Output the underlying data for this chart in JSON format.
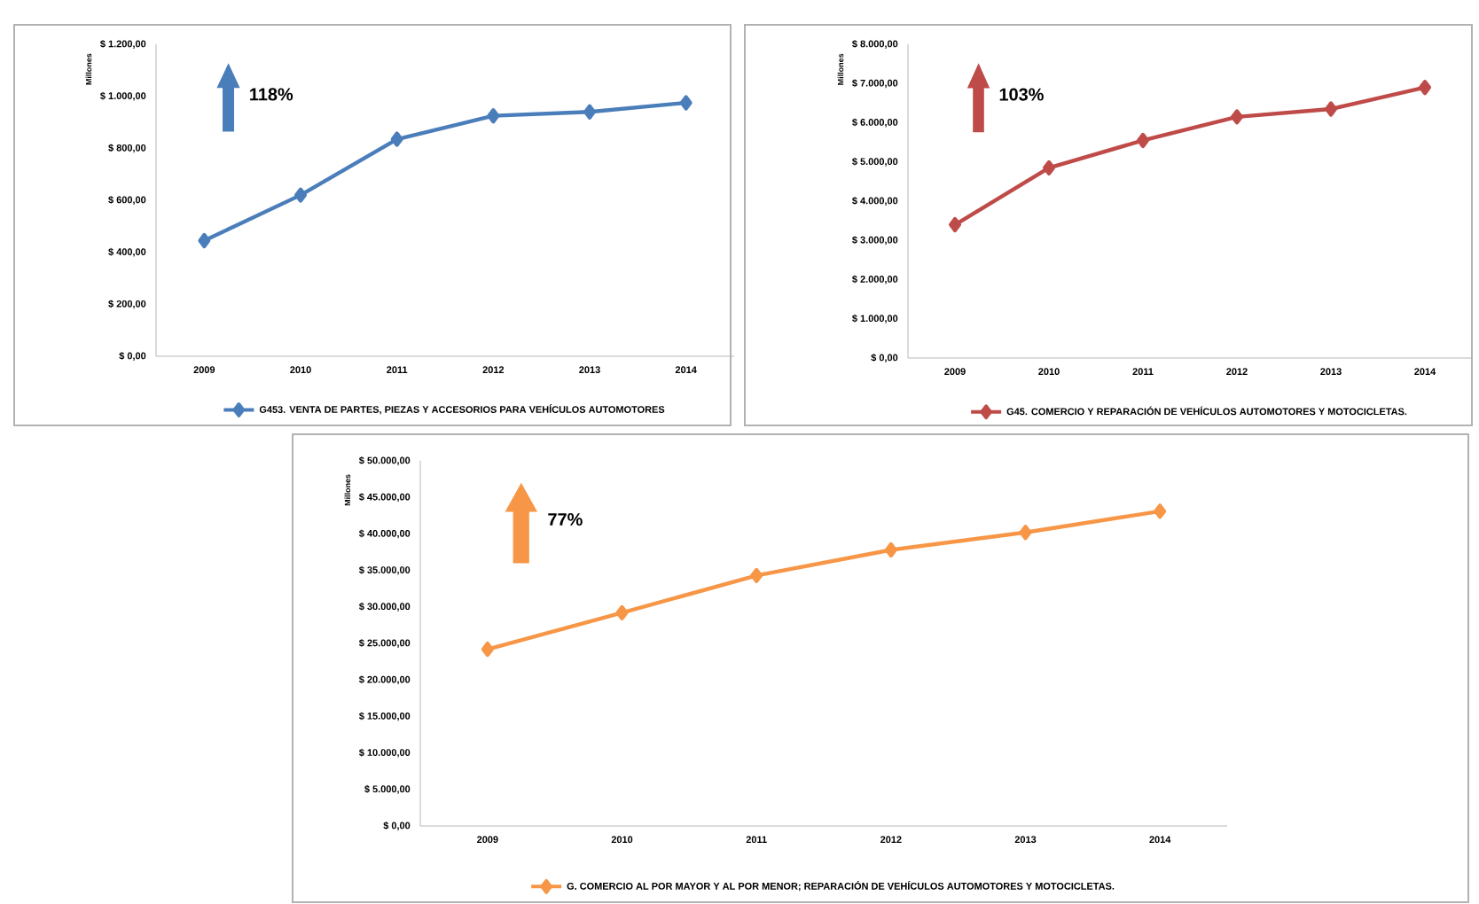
{
  "chart_data": [
    {
      "type": "line",
      "ylabel": "Millones",
      "categories": [
        "2009",
        "2010",
        "2011",
        "2012",
        "2013",
        "2014"
      ],
      "series": [
        {
          "name": "G453. VENTA DE PARTES, PIEZAS Y ACCESORIOS PARA VEHÍCULOS AUTOMOTORES",
          "color": "#4a7ebb",
          "values": [
            445,
            620,
            835,
            925,
            940,
            975
          ]
        }
      ],
      "ylim": [
        0,
        1200
      ],
      "yticks": [
        {
          "value": 0,
          "label": "$ 0,00"
        },
        {
          "value": 200,
          "label": "$ 200,00"
        },
        {
          "value": 400,
          "label": "$ 400,00"
        },
        {
          "value": 600,
          "label": "$ 600,00"
        },
        {
          "value": 800,
          "label": "$ 800,00"
        },
        {
          "value": 1000,
          "label": "$ 1.000,00"
        },
        {
          "value": 1200,
          "label": "$ 1.200,00"
        }
      ],
      "annotations": [
        "118%"
      ],
      "legend": "bottom",
      "marker": "diamond",
      "grid": false
    },
    {
      "type": "line",
      "ylabel": "Millones",
      "categories": [
        "2009",
        "2010",
        "2011",
        "2012",
        "2013",
        "2014"
      ],
      "series": [
        {
          "name": "G45. COMERCIO Y REPARACIÓN DE VEHÍCULOS AUTOMOTORES Y MOTOCICLETAS.",
          "color": "#be4b48",
          "values": [
            3400,
            4850,
            5550,
            6150,
            6350,
            6900
          ]
        }
      ],
      "ylim": [
        0,
        8000
      ],
      "yticks": [
        {
          "value": 0,
          "label": "$ 0,00"
        },
        {
          "value": 1000,
          "label": "$ 1.000,00"
        },
        {
          "value": 2000,
          "label": "$ 2.000,00"
        },
        {
          "value": 3000,
          "label": "$ 3.000,00"
        },
        {
          "value": 4000,
          "label": "$ 4.000,00"
        },
        {
          "value": 5000,
          "label": "$ 5.000,00"
        },
        {
          "value": 6000,
          "label": "$ 6.000,00"
        },
        {
          "value": 7000,
          "label": "$ 7.000,00"
        },
        {
          "value": 8000,
          "label": "$ 8.000,00"
        }
      ],
      "annotations": [
        "103%"
      ],
      "legend": "bottom",
      "marker": "diamond",
      "grid": false
    },
    {
      "type": "line",
      "ylabel": "Millones",
      "categories": [
        "2009",
        "2010",
        "2011",
        "2012",
        "2013",
        "2014"
      ],
      "series": [
        {
          "name": "G. COMERCIO AL POR MAYOR Y AL POR MENOR; REPARACIÓN DE VEHÍCULOS AUTOMOTORES Y MOTOCICLETAS.",
          "color": "#f79646",
          "values": [
            24200,
            29200,
            34300,
            37800,
            40200,
            43100
          ]
        }
      ],
      "ylim": [
        0,
        50000
      ],
      "yticks": [
        {
          "value": 0,
          "label": "$ 0,00"
        },
        {
          "value": 5000,
          "label": "$ 5.000,00"
        },
        {
          "value": 10000,
          "label": "$ 10.000,00"
        },
        {
          "value": 15000,
          "label": "$ 15.000,00"
        },
        {
          "value": 20000,
          "label": "$ 20.000,00"
        },
        {
          "value": 25000,
          "label": "$ 25.000,00"
        },
        {
          "value": 30000,
          "label": "$ 30.000,00"
        },
        {
          "value": 35000,
          "label": "$ 35.000,00"
        },
        {
          "value": 40000,
          "label": "$ 40.000,00"
        },
        {
          "value": 45000,
          "label": "$ 45.000,00"
        },
        {
          "value": 50000,
          "label": "$ 50.000,00"
        }
      ],
      "annotations": [
        "77%"
      ],
      "legend": "bottom",
      "marker": "diamond",
      "grid": false
    }
  ]
}
